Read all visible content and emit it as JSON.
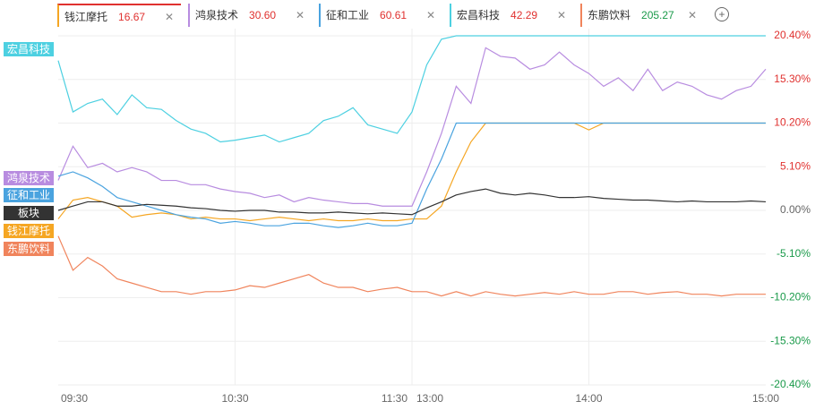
{
  "chart_data": {
    "type": "line",
    "categories": [
      "09:30",
      null,
      null,
      null,
      null,
      null,
      null,
      null,
      null,
      null,
      null,
      null,
      "10:30",
      null,
      null,
      null,
      null,
      null,
      null,
      null,
      null,
      null,
      null,
      null,
      "11:30",
      null,
      null,
      null,
      null,
      null,
      null,
      null,
      null,
      null,
      null,
      null,
      "14:00",
      null,
      null,
      null,
      null,
      null,
      null,
      null,
      null,
      null,
      null,
      null,
      "15:00"
    ],
    "midday_label": "13:00",
    "ylim": [
      -20.4,
      20.4
    ],
    "yticks": [
      {
        "value": 20.4,
        "label": "20.40%"
      },
      {
        "value": 15.3,
        "label": "15.30%"
      },
      {
        "value": 10.2,
        "label": "10.20%"
      },
      {
        "value": 5.1,
        "label": "5.10%"
      },
      {
        "value": 0,
        "label": "0.00%"
      },
      {
        "value": -5.1,
        "label": "-5.10%"
      },
      {
        "value": -10.2,
        "label": "-10.20%"
      },
      {
        "value": -15.3,
        "label": "-15.30%"
      },
      {
        "value": -20.4,
        "label": "-20.40%"
      }
    ],
    "grid": true,
    "series": [
      {
        "name": "钱江摩托",
        "price": "16.67",
        "color": "#f5a623",
        "values": [
          -1.0,
          1.2,
          1.5,
          1.0,
          0.5,
          -0.8,
          -0.5,
          -0.3,
          -0.5,
          -1.0,
          -0.8,
          -1.0,
          -1.0,
          -1.2,
          -1.0,
          -0.8,
          -1.0,
          -1.2,
          -1.0,
          -1.2,
          -1.2,
          -1.0,
          -1.2,
          -1.2,
          -1.0,
          -1.0,
          0.5,
          4.5,
          8.0,
          10.2,
          10.2,
          10.2,
          10.2,
          10.2,
          10.2,
          10.2,
          9.4,
          10.2,
          10.2,
          10.2,
          10.2,
          10.2,
          10.2,
          10.2,
          10.2,
          10.2,
          10.2,
          10.2,
          10.2
        ]
      },
      {
        "name": "鸿泉技术",
        "price": "30.60",
        "color": "#b88ce0",
        "values": [
          3.5,
          7.5,
          5.0,
          5.5,
          4.5,
          5.0,
          4.5,
          3.5,
          3.5,
          3.0,
          3.0,
          2.5,
          2.2,
          2.0,
          1.5,
          1.8,
          1.0,
          1.5,
          1.2,
          1.0,
          0.8,
          0.8,
          0.5,
          0.5,
          0.5,
          4.5,
          9.0,
          14.5,
          12.5,
          19.0,
          18.0,
          17.8,
          16.5,
          17.0,
          18.5,
          17.0,
          16.0,
          14.5,
          15.5,
          14.0,
          16.5,
          14.0,
          15.0,
          14.5,
          13.5,
          13.0,
          14.0,
          14.5,
          16.5
        ]
      },
      {
        "name": "征和工业",
        "price": "60.61",
        "color": "#4aa3df",
        "values": [
          4.0,
          4.5,
          3.8,
          2.8,
          1.5,
          1.0,
          0.5,
          0.0,
          -0.5,
          -0.8,
          -1.0,
          -1.5,
          -1.3,
          -1.5,
          -1.8,
          -1.8,
          -1.5,
          -1.5,
          -1.8,
          -2.0,
          -1.8,
          -1.5,
          -1.8,
          -1.8,
          -1.5,
          2.5,
          6.0,
          10.2,
          10.2,
          10.2,
          10.2,
          10.2,
          10.2,
          10.2,
          10.2,
          10.2,
          10.2,
          10.2,
          10.2,
          10.2,
          10.2,
          10.2,
          10.2,
          10.2,
          10.2,
          10.2,
          10.2,
          10.2,
          10.2
        ]
      },
      {
        "name": "宏昌科技",
        "price": "42.29",
        "color": "#4dd0e1",
        "values": [
          17.5,
          11.5,
          12.5,
          13.0,
          11.2,
          13.5,
          12.0,
          11.8,
          10.5,
          9.5,
          9.0,
          8.0,
          8.2,
          8.5,
          8.8,
          8.0,
          8.5,
          9.0,
          10.5,
          11.0,
          12.0,
          10.0,
          9.5,
          9.0,
          11.5,
          17.0,
          20.0,
          20.4,
          20.4,
          20.4,
          20.4,
          20.4,
          20.4,
          20.4,
          20.4,
          20.4,
          20.4,
          20.4,
          20.4,
          20.4,
          20.4,
          20.4,
          20.4,
          20.4,
          20.4,
          20.4,
          20.4,
          20.4,
          20.4
        ]
      },
      {
        "name": "东鹏饮料",
        "price": "205.27",
        "color": "#f0845c",
        "values": [
          -3.0,
          -7.0,
          -5.5,
          -6.5,
          -8.0,
          -8.5,
          -9.0,
          -9.5,
          -9.5,
          -9.8,
          -9.5,
          -9.5,
          -9.3,
          -8.8,
          -9.0,
          -8.5,
          -8.0,
          -7.5,
          -8.5,
          -9.0,
          -9.0,
          -9.5,
          -9.2,
          -9.0,
          -9.5,
          -9.5,
          -10.0,
          -9.5,
          -10.0,
          -9.5,
          -9.8,
          -10.0,
          -9.8,
          -9.6,
          -9.8,
          -9.5,
          -9.8,
          -9.8,
          -9.5,
          -9.5,
          -9.8,
          -9.6,
          -9.5,
          -9.8,
          -9.8,
          -10.0,
          -9.8,
          -9.8,
          -9.8
        ]
      },
      {
        "name": "板块",
        "color": "#333333",
        "values": [
          0.0,
          0.5,
          1.0,
          1.0,
          0.5,
          0.5,
          0.7,
          0.6,
          0.5,
          0.3,
          0.2,
          0.0,
          -0.1,
          0.0,
          0.0,
          -0.2,
          -0.2,
          -0.3,
          -0.3,
          -0.2,
          -0.3,
          -0.4,
          -0.3,
          -0.4,
          -0.5,
          0.3,
          1.0,
          1.8,
          2.2,
          2.5,
          2.0,
          1.8,
          2.0,
          1.8,
          1.5,
          1.5,
          1.6,
          1.4,
          1.3,
          1.2,
          1.2,
          1.1,
          1.0,
          1.1,
          1.0,
          1.0,
          1.0,
          1.1,
          1.0
        ]
      }
    ]
  }
}
